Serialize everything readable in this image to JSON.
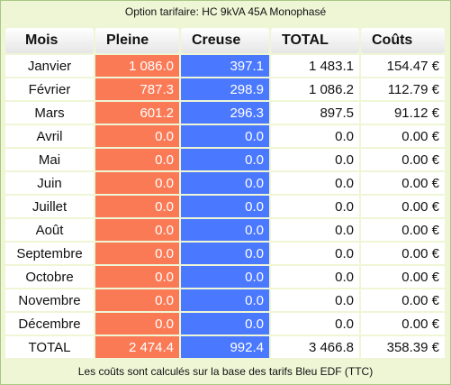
{
  "caption": "Option tarifaire: HC 9kVA 45A Monophasé",
  "table": {
    "header": [
      "Mois",
      "Pleine",
      "Creuse",
      "TOTAL",
      "Coûts"
    ],
    "rows": [
      [
        "Janvier",
        "1 086.0",
        "397.1",
        "1 483.1",
        "154.47 €"
      ],
      [
        "Février",
        "787.3",
        "298.9",
        "1 086.2",
        "112.79 €"
      ],
      [
        "Mars",
        "601.2",
        "296.3",
        "897.5",
        "91.12 €"
      ],
      [
        "Avril",
        "0.0",
        "0.0",
        "0.0",
        "0.00 €"
      ],
      [
        "Mai",
        "0.0",
        "0.0",
        "0.0",
        "0.00 €"
      ],
      [
        "Juin",
        "0.0",
        "0.0",
        "0.0",
        "0.00 €"
      ],
      [
        "Juillet",
        "0.0",
        "0.0",
        "0.0",
        "0.00 €"
      ],
      [
        "Août",
        "0.0",
        "0.0",
        "0.0",
        "0.00 €"
      ],
      [
        "Septembre",
        "0.0",
        "0.0",
        "0.0",
        "0.00 €"
      ],
      [
        "Octobre",
        "0.0",
        "0.0",
        "0.0",
        "0.00 €"
      ],
      [
        "Novembre",
        "0.0",
        "0.0",
        "0.0",
        "0.00 €"
      ],
      [
        "Décembre",
        "0.0",
        "0.0",
        "0.0",
        "0.00 €"
      ],
      [
        "TOTAL",
        "2 474.4",
        "992.4",
        "3 466.8",
        "358.39 €"
      ]
    ]
  },
  "footer": "Les coûts sont calculés sur la base des tarifs Bleu EDF (TTC)"
}
